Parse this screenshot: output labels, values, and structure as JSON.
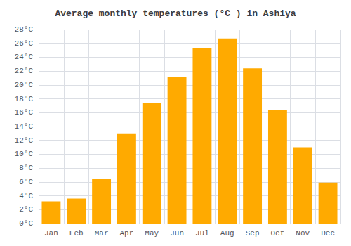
{
  "chart_data": {
    "type": "bar",
    "title": "Average monthly temperatures (°C ) in Ashiya",
    "categories": [
      "Jan",
      "Feb",
      "Mar",
      "Apr",
      "May",
      "Jun",
      "Jul",
      "Aug",
      "Sep",
      "Oct",
      "Nov",
      "Dec"
    ],
    "values": [
      3.2,
      3.6,
      6.5,
      13.0,
      17.4,
      21.2,
      25.3,
      26.7,
      22.4,
      16.4,
      11.0,
      5.9
    ],
    "color": "#FFAA00",
    "ylim": [
      0,
      28
    ],
    "yticks": [
      {
        "value": 0,
        "label": "0°C"
      },
      {
        "value": 2,
        "label": "2°C"
      },
      {
        "value": 4,
        "label": "4°C"
      },
      {
        "value": 6,
        "label": "6°C"
      },
      {
        "value": 8,
        "label": "8°C"
      },
      {
        "value": 10,
        "label": "10°C"
      },
      {
        "value": 12,
        "label": "12°C"
      },
      {
        "value": 14,
        "label": "14°C"
      },
      {
        "value": 16,
        "label": "16°C"
      },
      {
        "value": 18,
        "label": "18°C"
      },
      {
        "value": 20,
        "label": "20°C"
      },
      {
        "value": 22,
        "label": "22°C"
      },
      {
        "value": 24,
        "label": "24°C"
      },
      {
        "value": 26,
        "label": "26°C"
      },
      {
        "value": 28,
        "label": "28°C"
      }
    ],
    "grid": true
  }
}
